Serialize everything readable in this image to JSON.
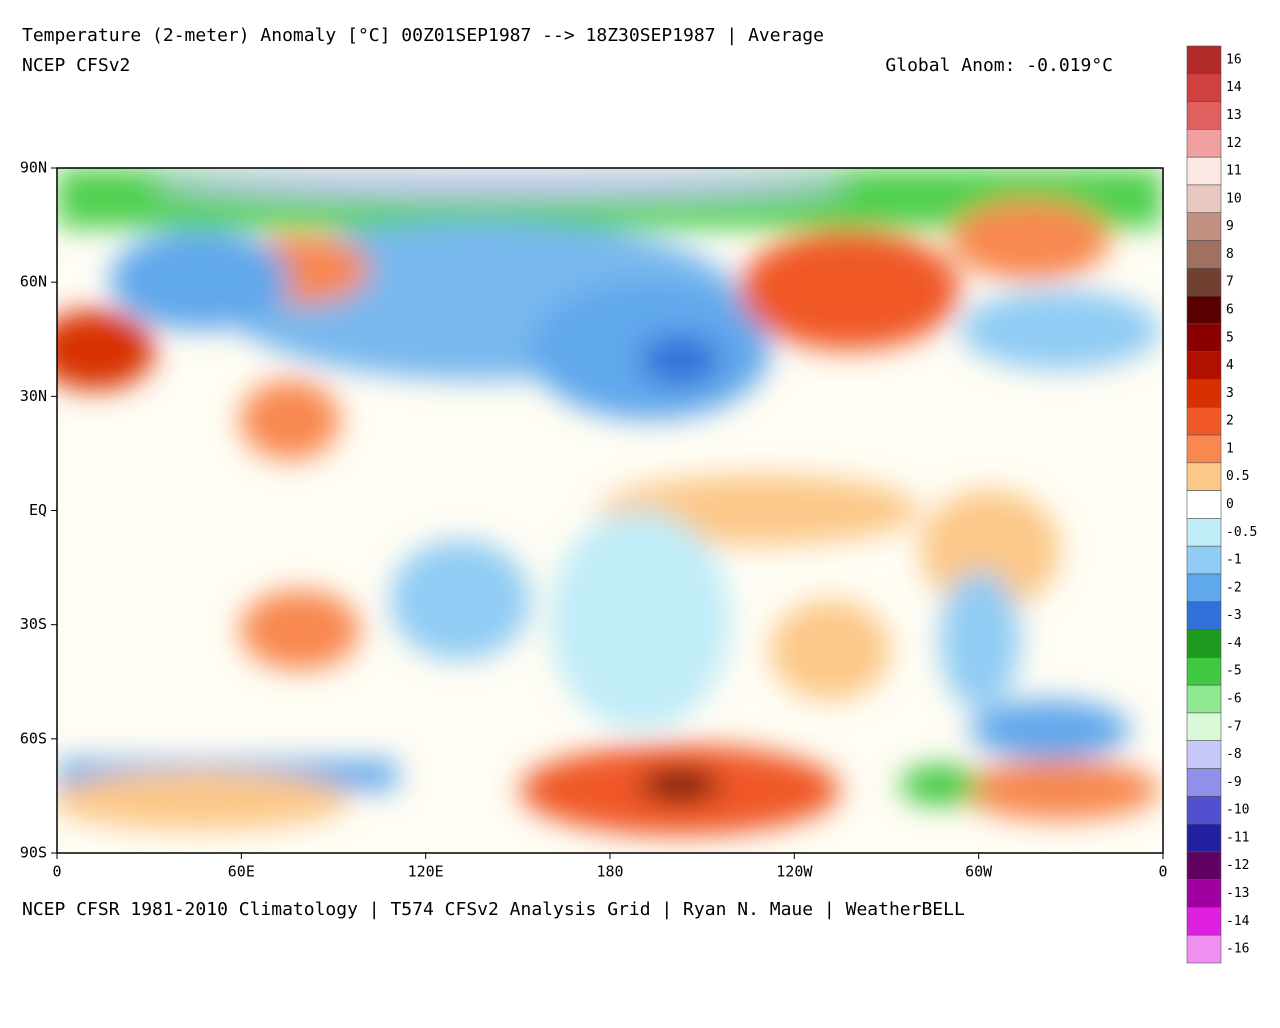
{
  "header": {
    "title": "Temperature (2-meter) Anomaly  [°C] 00Z01SEP1987 --> 18Z30SEP1987 | Average",
    "model": "NCEP CFSv2",
    "global_anom": "Global Anom: -0.019°C"
  },
  "map": {
    "lat_labels": [
      "90N",
      "60N",
      "30N",
      "EQ",
      "30S",
      "60S",
      "90S"
    ],
    "lon_labels": [
      "0",
      "60E",
      "120E",
      "180",
      "120W",
      "60W",
      "0"
    ]
  },
  "footer": "NCEP CFSR 1981-2010 Climatology | T574 CFSv2 Analysis Grid | Ryan N. Maue | WeatherBELL",
  "legend": {
    "labels": [
      "16",
      "14",
      "13",
      "12",
      "11",
      "10",
      "9",
      "8",
      "7",
      "6",
      "5",
      "4",
      "3",
      "2",
      "1",
      "0.5",
      "0",
      "-0.5",
      "-1",
      "-2",
      "-3",
      "-4",
      "-5",
      "-6",
      "-7",
      "-8",
      "-9",
      "-10",
      "-11",
      "-12",
      "-13",
      "-14",
      "-16"
    ],
    "colors": [
      "#b02a2a",
      "#d04040",
      "#e06060",
      "#f0a0a0",
      "#fce8e4",
      "#e8c8c0",
      "#c09080",
      "#a07060",
      "#704030",
      "#5a0000",
      "#8a0000",
      "#b01000",
      "#d83000",
      "#f05828",
      "#f88850",
      "#fcc888",
      "#ffffff",
      "#c0ecf8",
      "#90ccf4",
      "#60a8ec",
      "#3070d8",
      "#1e9a1e",
      "#40c840",
      "#90e890",
      "#d8f8d8",
      "#c8c8f8",
      "#9090e8",
      "#5050d0",
      "#2020a0",
      "#600060",
      "#a000a0",
      "#e020e0",
      "#f090f0"
    ]
  }
}
